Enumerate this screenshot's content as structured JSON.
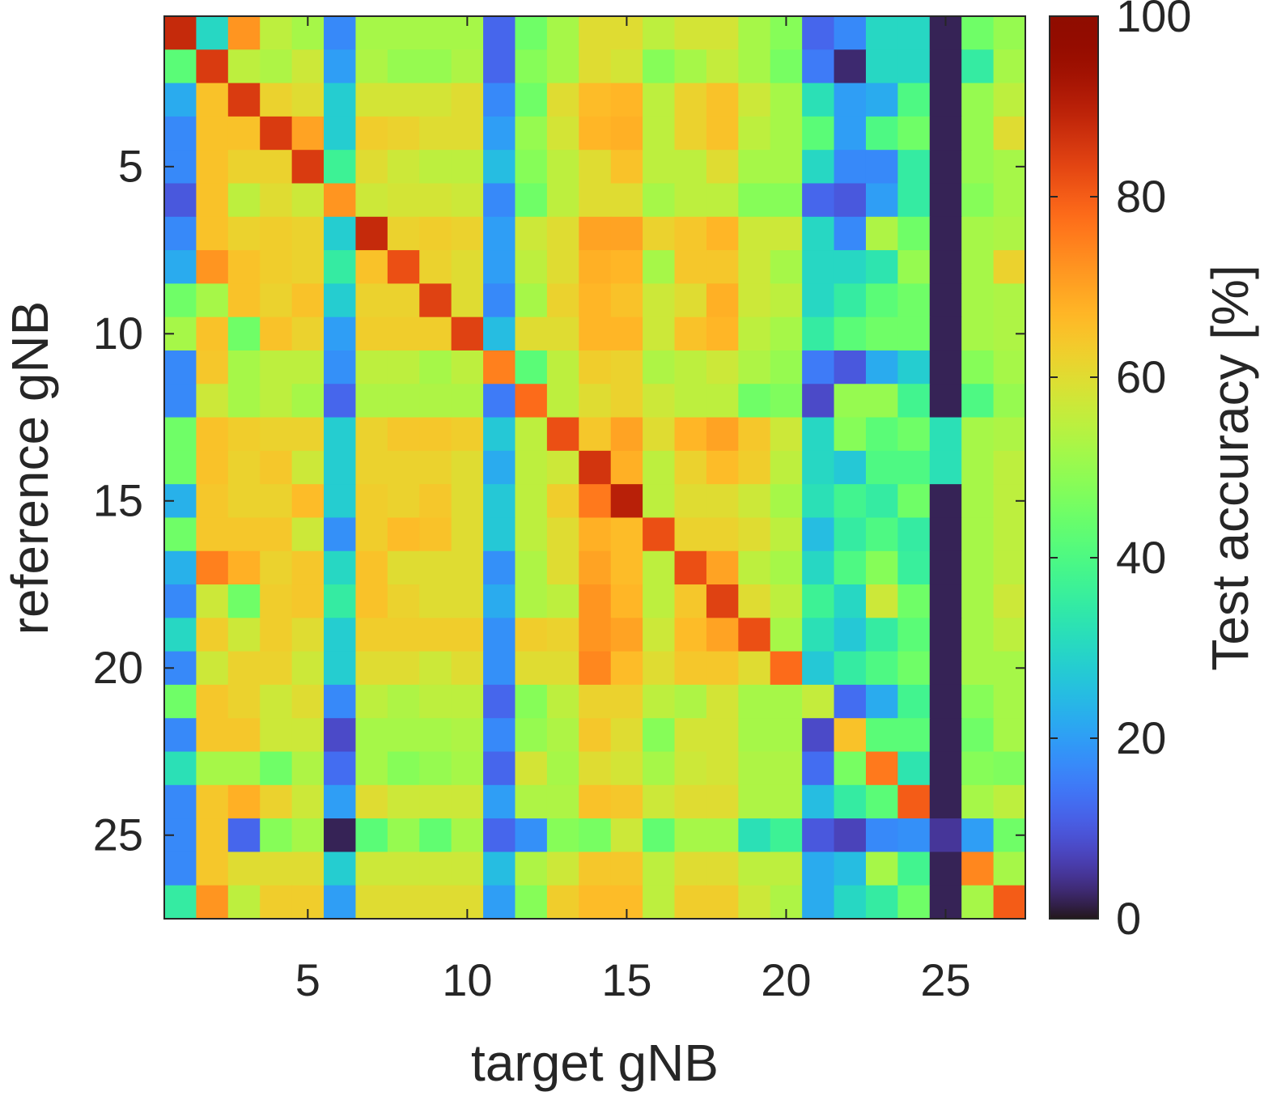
{
  "chart_data": {
    "type": "heatmap",
    "xlabel": "target gNB",
    "ylabel": "reference gNB",
    "colorbar_label": "Test accuracy [%]",
    "colormap": "turbo",
    "x": [
      1,
      2,
      3,
      4,
      5,
      6,
      7,
      8,
      9,
      10,
      11,
      12,
      13,
      14,
      15,
      16,
      17,
      18,
      19,
      20,
      21,
      22,
      23,
      24,
      25,
      26,
      27
    ],
    "y": [
      1,
      2,
      3,
      4,
      5,
      6,
      7,
      8,
      9,
      10,
      11,
      12,
      13,
      14,
      15,
      16,
      17,
      18,
      19,
      20,
      21,
      22,
      23,
      24,
      25,
      26,
      27
    ],
    "xlim": [
      0.5,
      27.5
    ],
    "ylim": [
      27.5,
      0.5
    ],
    "xticks": [
      5,
      10,
      15,
      20,
      25
    ],
    "yticks": [
      5,
      10,
      15,
      20,
      25
    ],
    "clim": [
      0,
      100
    ],
    "cticks": [
      0,
      20,
      40,
      60,
      80,
      100
    ],
    "values": [
      [
        88,
        30,
        72,
        55,
        52,
        17,
        52,
        52,
        52,
        52,
        12,
        45,
        52,
        60,
        60,
        55,
        58,
        58,
        52,
        48,
        12,
        17,
        30,
        30,
        2,
        45,
        50
      ],
      [
        42,
        85,
        55,
        53,
        57,
        20,
        53,
        50,
        50,
        53,
        12,
        48,
        52,
        60,
        58,
        48,
        52,
        56,
        52,
        46,
        15,
        3,
        30,
        30,
        2,
        35,
        52
      ],
      [
        22,
        65,
        85,
        62,
        60,
        28,
        58,
        58,
        58,
        60,
        17,
        45,
        60,
        66,
        67,
        55,
        62,
        65,
        57,
        52,
        32,
        20,
        22,
        40,
        2,
        50,
        55
      ],
      [
        17,
        65,
        65,
        85,
        70,
        28,
        63,
        62,
        60,
        60,
        20,
        50,
        58,
        67,
        68,
        55,
        62,
        65,
        55,
        52,
        42,
        20,
        40,
        45,
        2,
        50,
        60
      ],
      [
        17,
        65,
        62,
        62,
        85,
        37,
        60,
        57,
        55,
        55,
        25,
        48,
        55,
        60,
        65,
        55,
        55,
        60,
        52,
        52,
        30,
        17,
        17,
        35,
        2,
        50,
        52
      ],
      [
        10,
        65,
        55,
        60,
        57,
        72,
        57,
        58,
        58,
        57,
        17,
        45,
        55,
        60,
        60,
        52,
        55,
        55,
        48,
        48,
        12,
        10,
        20,
        35,
        2,
        48,
        52
      ],
      [
        17,
        65,
        62,
        63,
        62,
        28,
        88,
        62,
        63,
        62,
        20,
        57,
        60,
        70,
        70,
        62,
        64,
        67,
        57,
        57,
        30,
        17,
        53,
        45,
        2,
        52,
        53
      ],
      [
        22,
        72,
        65,
        63,
        62,
        35,
        65,
        82,
        62,
        60,
        20,
        55,
        60,
        68,
        67,
        52,
        64,
        64,
        57,
        52,
        30,
        30,
        33,
        50,
        2,
        52,
        62
      ],
      [
        45,
        52,
        65,
        62,
        65,
        28,
        62,
        62,
        84,
        60,
        17,
        52,
        62,
        67,
        65,
        57,
        60,
        68,
        57,
        55,
        30,
        35,
        42,
        45,
        2,
        52,
        53
      ],
      [
        52,
        65,
        45,
        65,
        62,
        20,
        63,
        63,
        63,
        84,
        25,
        60,
        60,
        67,
        67,
        57,
        65,
        67,
        55,
        52,
        35,
        42,
        45,
        45,
        2,
        52,
        53
      ],
      [
        17,
        64,
        52,
        55,
        55,
        18,
        55,
        55,
        52,
        55,
        75,
        42,
        55,
        63,
        62,
        53,
        55,
        57,
        53,
        50,
        15,
        10,
        22,
        28,
        2,
        48,
        52
      ],
      [
        17,
        57,
        52,
        55,
        52,
        12,
        53,
        53,
        53,
        53,
        15,
        78,
        55,
        60,
        62,
        57,
        55,
        55,
        45,
        47,
        8,
        50,
        50,
        38,
        2,
        40,
        50
      ],
      [
        45,
        65,
        63,
        62,
        62,
        28,
        62,
        64,
        64,
        63,
        27,
        55,
        82,
        64,
        70,
        60,
        67,
        70,
        64,
        57,
        30,
        48,
        42,
        45,
        32,
        52,
        53
      ],
      [
        45,
        65,
        62,
        64,
        57,
        28,
        62,
        62,
        62,
        60,
        22,
        55,
        57,
        86,
        68,
        55,
        62,
        66,
        63,
        55,
        30,
        27,
        40,
        40,
        32,
        52,
        55
      ],
      [
        23,
        64,
        62,
        62,
        66,
        28,
        63,
        62,
        64,
        60,
        27,
        55,
        63,
        76,
        90,
        55,
        60,
        60,
        57,
        52,
        32,
        38,
        35,
        45,
        2,
        52,
        55
      ],
      [
        45,
        64,
        64,
        64,
        57,
        18,
        63,
        66,
        65,
        60,
        27,
        55,
        60,
        68,
        66,
        82,
        62,
        62,
        60,
        55,
        25,
        35,
        40,
        35,
        2,
        52,
        55
      ],
      [
        23,
        75,
        68,
        62,
        64,
        30,
        65,
        60,
        60,
        60,
        18,
        53,
        60,
        70,
        66,
        55,
        82,
        70,
        55,
        52,
        30,
        40,
        48,
        36,
        2,
        52,
        55
      ],
      [
        17,
        57,
        45,
        63,
        64,
        35,
        65,
        62,
        60,
        60,
        22,
        53,
        55,
        72,
        67,
        55,
        64,
        84,
        60,
        55,
        37,
        30,
        57,
        45,
        2,
        52,
        57
      ],
      [
        30,
        63,
        57,
        63,
        60,
        28,
        63,
        63,
        63,
        63,
        18,
        63,
        62,
        72,
        70,
        57,
        66,
        70,
        82,
        52,
        32,
        27,
        35,
        42,
        2,
        52,
        55
      ],
      [
        17,
        57,
        62,
        62,
        57,
        28,
        60,
        60,
        57,
        60,
        18,
        60,
        60,
        74,
        66,
        60,
        64,
        64,
        60,
        78,
        27,
        35,
        40,
        45,
        2,
        52,
        52
      ],
      [
        45,
        64,
        62,
        57,
        60,
        17,
        55,
        53,
        55,
        55,
        12,
        48,
        55,
        62,
        62,
        55,
        53,
        58,
        52,
        52,
        56,
        13,
        22,
        38,
        2,
        48,
        52
      ],
      [
        17,
        64,
        64,
        57,
        57,
        8,
        52,
        52,
        52,
        53,
        17,
        50,
        53,
        64,
        60,
        48,
        58,
        58,
        52,
        52,
        8,
        65,
        42,
        42,
        2,
        45,
        52
      ],
      [
        32,
        52,
        52,
        45,
        53,
        13,
        52,
        48,
        50,
        52,
        12,
        58,
        52,
        60,
        58,
        52,
        57,
        58,
        53,
        53,
        13,
        46,
        76,
        33,
        2,
        48,
        47
      ],
      [
        17,
        64,
        68,
        62,
        57,
        20,
        60,
        57,
        57,
        57,
        20,
        53,
        53,
        65,
        64,
        57,
        60,
        60,
        53,
        53,
        25,
        35,
        42,
        80,
        2,
        52,
        55
      ],
      [
        17,
        64,
        12,
        48,
        52,
        2,
        42,
        50,
        43,
        52,
        12,
        18,
        48,
        46,
        57,
        43,
        52,
        52,
        32,
        37,
        10,
        7,
        17,
        18,
        5,
        20,
        45
      ],
      [
        17,
        64,
        60,
        60,
        60,
        28,
        57,
        57,
        57,
        57,
        25,
        53,
        57,
        64,
        64,
        55,
        60,
        60,
        55,
        55,
        22,
        25,
        52,
        38,
        2,
        74,
        52
      ],
      [
        35,
        72,
        55,
        63,
        63,
        20,
        60,
        60,
        60,
        60,
        20,
        48,
        63,
        66,
        66,
        55,
        63,
        63,
        57,
        53,
        22,
        30,
        35,
        45,
        2,
        52,
        80
      ]
    ]
  }
}
